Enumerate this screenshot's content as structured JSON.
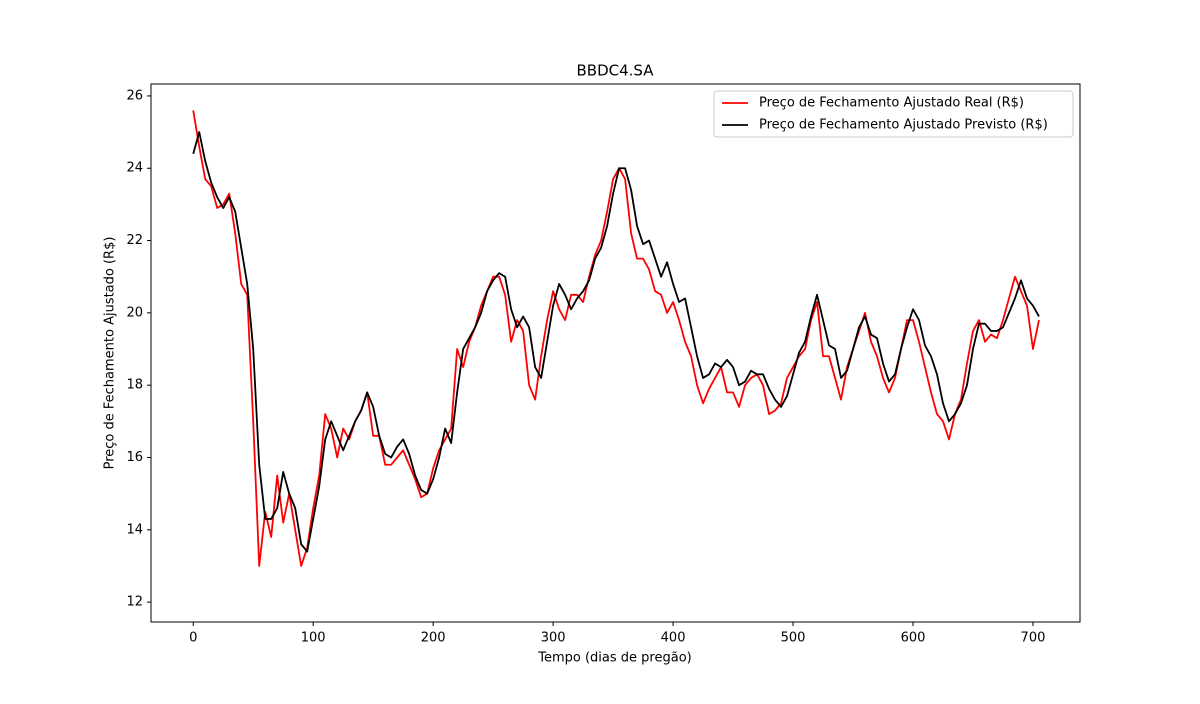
{
  "chart_data": {
    "type": "line",
    "title": "BBDC4.SA",
    "x_label": "Tempo (dias de pregão)",
    "y_label": "Preço de Fechamento Ajustado (R$)",
    "x": [
      0,
      5,
      10,
      15,
      20,
      25,
      30,
      35,
      40,
      45,
      50,
      55,
      60,
      65,
      70,
      75,
      80,
      85,
      90,
      95,
      100,
      105,
      110,
      115,
      120,
      125,
      130,
      135,
      140,
      145,
      150,
      155,
      160,
      165,
      170,
      175,
      180,
      185,
      190,
      195,
      200,
      205,
      210,
      215,
      220,
      225,
      230,
      235,
      240,
      245,
      250,
      255,
      260,
      265,
      270,
      275,
      280,
      285,
      290,
      295,
      300,
      305,
      310,
      315,
      320,
      325,
      330,
      335,
      340,
      345,
      350,
      355,
      360,
      365,
      370,
      375,
      380,
      385,
      390,
      395,
      400,
      405,
      410,
      415,
      420,
      425,
      430,
      435,
      440,
      445,
      450,
      455,
      460,
      465,
      470,
      475,
      480,
      485,
      490,
      495,
      500,
      505,
      510,
      515,
      520,
      525,
      530,
      535,
      540,
      545,
      550,
      555,
      560,
      565,
      570,
      575,
      580,
      585,
      590,
      595,
      600,
      605,
      610,
      615,
      620,
      625,
      630,
      635,
      640,
      645,
      650,
      655,
      660,
      665,
      670,
      675,
      680,
      685,
      690,
      695,
      700,
      705
    ],
    "series": [
      {
        "name": "Preço de Fechamento Ajustado Real (R$)",
        "color": "#ff0000",
        "values": [
          25.6,
          24.6,
          23.7,
          23.5,
          22.9,
          23.0,
          23.3,
          22.2,
          20.8,
          20.5,
          17.0,
          13.0,
          14.5,
          13.8,
          15.5,
          14.2,
          15.0,
          14.0,
          13.0,
          13.5,
          14.6,
          15.5,
          17.2,
          16.8,
          16.0,
          16.8,
          16.5,
          17.0,
          17.3,
          17.8,
          16.6,
          16.6,
          15.8,
          15.8,
          16.0,
          16.2,
          15.8,
          15.4,
          14.9,
          15.0,
          15.7,
          16.2,
          16.5,
          16.8,
          19.0,
          18.5,
          19.2,
          19.6,
          20.2,
          20.6,
          21.0,
          21.0,
          20.5,
          19.2,
          19.8,
          19.5,
          18.0,
          17.6,
          18.8,
          19.8,
          20.6,
          20.1,
          19.8,
          20.5,
          20.5,
          20.3,
          21.0,
          21.6,
          22.0,
          22.8,
          23.7,
          24.0,
          23.7,
          22.2,
          21.5,
          21.5,
          21.2,
          20.6,
          20.5,
          20.0,
          20.3,
          19.8,
          19.2,
          18.8,
          18.0,
          17.5,
          17.9,
          18.2,
          18.5,
          17.8,
          17.8,
          17.4,
          18.0,
          18.2,
          18.3,
          18.0,
          17.2,
          17.3,
          17.5,
          18.2,
          18.5,
          18.8,
          19.0,
          19.8,
          20.3,
          18.8,
          18.8,
          18.2,
          17.6,
          18.5,
          19.0,
          19.5,
          20.0,
          19.2,
          18.8,
          18.2,
          17.8,
          18.2,
          19.0,
          19.8,
          19.8,
          19.2,
          18.5,
          17.8,
          17.2,
          17.0,
          16.5,
          17.2,
          17.6,
          18.6,
          19.5,
          19.8,
          19.2,
          19.4,
          19.3,
          19.8,
          20.4,
          21.0,
          20.6,
          20.2,
          19.0,
          19.8
        ]
      },
      {
        "name": "Preço de Fechamento Ajustado Previsto (R$)",
        "color": "#000000",
        "values": [
          24.4,
          25.0,
          24.2,
          23.6,
          23.2,
          22.9,
          23.2,
          22.8,
          21.8,
          20.8,
          19.0,
          15.8,
          14.3,
          14.3,
          14.6,
          15.6,
          15.0,
          14.6,
          13.6,
          13.4,
          14.3,
          15.2,
          16.5,
          17.0,
          16.6,
          16.2,
          16.6,
          17.0,
          17.3,
          17.8,
          17.4,
          16.6,
          16.1,
          16.0,
          16.3,
          16.5,
          16.1,
          15.5,
          15.1,
          15.0,
          15.4,
          16.0,
          16.8,
          16.4,
          17.8,
          19.0,
          19.3,
          19.6,
          20.0,
          20.6,
          20.9,
          21.1,
          21.0,
          20.1,
          19.6,
          19.9,
          19.6,
          18.5,
          18.2,
          19.2,
          20.2,
          20.8,
          20.5,
          20.1,
          20.4,
          20.6,
          20.9,
          21.5,
          21.8,
          22.4,
          23.3,
          24.0,
          24.0,
          23.4,
          22.4,
          21.9,
          22.0,
          21.5,
          21.0,
          21.4,
          20.8,
          20.3,
          20.4,
          19.6,
          18.8,
          18.2,
          18.3,
          18.6,
          18.5,
          18.7,
          18.5,
          18.0,
          18.1,
          18.4,
          18.3,
          18.3,
          17.9,
          17.6,
          17.4,
          17.7,
          18.3,
          18.9,
          19.2,
          19.9,
          20.5,
          19.8,
          19.1,
          19.0,
          18.2,
          18.4,
          19.0,
          19.6,
          19.9,
          19.4,
          19.3,
          18.6,
          18.1,
          18.3,
          19.0,
          19.6,
          20.1,
          19.8,
          19.1,
          18.8,
          18.3,
          17.5,
          17.0,
          17.2,
          17.5,
          18.0,
          19.0,
          19.7,
          19.7,
          19.5,
          19.5,
          19.6,
          20.0,
          20.4,
          20.9,
          20.4,
          20.2,
          19.9
        ]
      }
    ],
    "xlim": [
      -35.2,
      739.2
    ],
    "ylim": [
      11.45,
      26.33
    ],
    "xticks": [
      0,
      100,
      200,
      300,
      400,
      500,
      600,
      700
    ],
    "yticks": [
      12,
      14,
      16,
      18,
      20,
      22,
      24,
      26
    ],
    "legend": "upper right"
  }
}
